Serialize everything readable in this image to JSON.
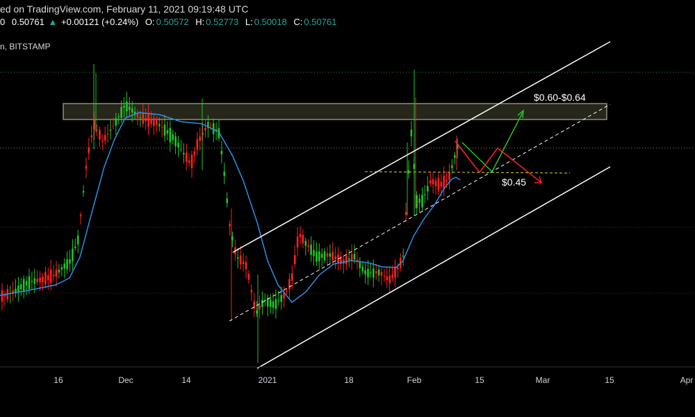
{
  "header": {
    "published_line": "ed on TradingView.com, February 11, 2021 09:19:48 UTC",
    "symbol_line": "n, BITSTAMP"
  },
  "ohlc": {
    "price_prefix": "0",
    "price": "0.50761",
    "change_arrow": "▲",
    "change": "+0.00121 (+0.24%)",
    "o_label": "O:",
    "o": "0.50572",
    "h_label": "H:",
    "h": "0.52773",
    "l_label": "L:",
    "l": "0.50018",
    "c_label": "C:",
    "c": "0.50761"
  },
  "colors": {
    "up": "#22c52a",
    "down": "#ff2222",
    "ma": "#2f8fe6",
    "label": "#d1d4dc",
    "neutral": "#d9d9d9"
  },
  "chart_data": {
    "type": "candlestick",
    "x_tick_labels": [
      "16",
      "Dec",
      "14",
      "2021",
      "18",
      "Feb",
      "15",
      "Mar",
      "15",
      "Apr"
    ],
    "annotations": {
      "target": "$0.60-$0.64",
      "support": "$0.45"
    },
    "grid": false,
    "ma_series": true,
    "scenario_arrows": [
      "bullish-green",
      "bearish-red"
    ]
  }
}
